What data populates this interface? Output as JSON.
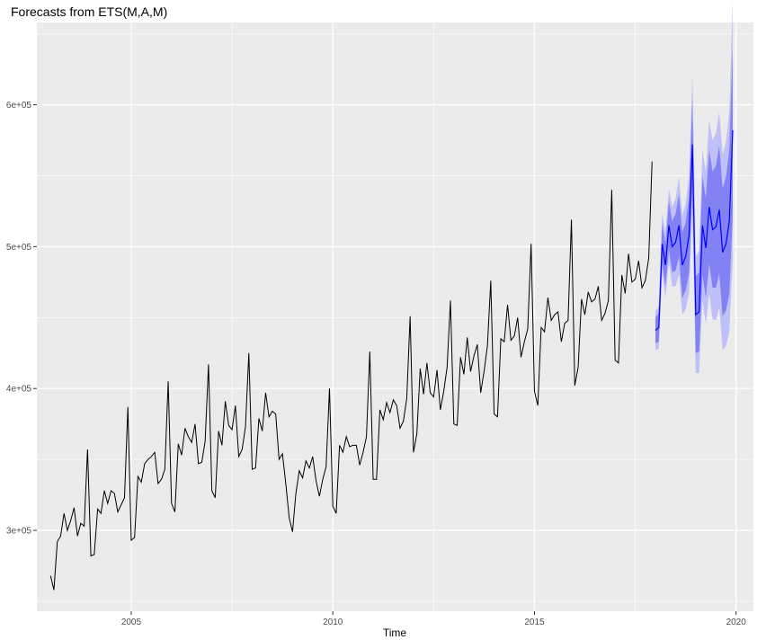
{
  "chart_data": {
    "type": "line",
    "title": "Forecasts from ETS(M,A,M)",
    "xlabel": "Time",
    "ylabel": "",
    "xlim": [
      2002.66,
      2020.43
    ],
    "ylim": [
      243000,
      658000
    ],
    "x_ticks": [
      2005,
      2010,
      2015,
      2020
    ],
    "x_tick_labels": [
      "2005",
      "2010",
      "2015",
      "2020"
    ],
    "y_ticks": [
      300000,
      400000,
      500000,
      600000
    ],
    "y_tick_labels": [
      "3e+05",
      "4e+05",
      "5e+05",
      "6e+05"
    ],
    "grid": true,
    "legend": "none",
    "colors": {
      "panel": "#ebebeb",
      "grid": "#ffffff",
      "series": "#000000",
      "forecast_line": "#0000ff",
      "band_95": "#bfc0f7",
      "band_80": "#8282f4"
    },
    "series": [
      {
        "start": 2003.0,
        "frequency": 12,
        "values": [
          268000,
          258000,
          292000,
          296000,
          312000,
          300000,
          307000,
          316000,
          296000,
          305000,
          303000,
          357000,
          282000,
          283000,
          315000,
          312000,
          328000,
          319000,
          328000,
          326000,
          313000,
          318000,
          323000,
          387000,
          293000,
          295000,
          338000,
          334000,
          347000,
          350000,
          352000,
          355000,
          333000,
          336000,
          343000,
          405000,
          319000,
          313000,
          361000,
          353000,
          372000,
          366000,
          362000,
          375000,
          347000,
          348000,
          363000,
          417000,
          328000,
          323000,
          370000,
          360000,
          391000,
          374000,
          371000,
          388000,
          352000,
          357000,
          373000,
          425000,
          343000,
          344000,
          379000,
          370000,
          397000,
          380000,
          384000,
          382000,
          350000,
          354000,
          333000,
          309000,
          299000,
          326000,
          342000,
          337000,
          349000,
          344000,
          352000,
          335000,
          324000,
          336000,
          345000,
          400000,
          317000,
          312000,
          360000,
          355000,
          366000,
          359000,
          360000,
          360000,
          346000,
          355000,
          366000,
          426000,
          336000,
          336000,
          385000,
          378000,
          390000,
          383000,
          392000,
          388000,
          372000,
          377000,
          393000,
          451000,
          355000,
          368000,
          414000,
          396000,
          418000,
          397000,
          394000,
          413000,
          385000,
          398000,
          415000,
          462000,
          375000,
          374000,
          422000,
          410000,
          436000,
          412000,
          423000,
          431000,
          397000,
          412000,
          430000,
          476000,
          382000,
          380000,
          435000,
          433000,
          459000,
          434000,
          437000,
          450000,
          422000,
          433000,
          442000,
          502000,
          398000,
          388000,
          443000,
          440000,
          464000,
          448000,
          452000,
          454000,
          433000,
          446000,
          448000,
          519000,
          402000,
          415000,
          463000,
          452000,
          468000,
          461000,
          463000,
          472000,
          448000,
          453000,
          462000,
          540000,
          420000,
          418000,
          480000,
          467000,
          495000,
          475000,
          477000,
          490000,
          471000,
          476000,
          492000,
          560000
        ]
      }
    ],
    "forecast": {
      "start": 2018.0,
      "frequency": 12,
      "mean": [
        441000,
        443000,
        502000,
        487000,
        515000,
        500000,
        503000,
        515000,
        487000,
        493000,
        508000,
        572000,
        452000,
        454000,
        515000,
        499000,
        528000,
        512000,
        514000,
        526000,
        496000,
        502000,
        518000,
        582000
      ],
      "lo80": [
        432000,
        433000,
        488000,
        472000,
        498000,
        482000,
        483000,
        493000,
        464000,
        469000,
        481000,
        540000,
        425000,
        426000,
        480000,
        464000,
        488000,
        471000,
        471000,
        481000,
        451000,
        455000,
        467000,
        523000
      ],
      "hi80": [
        450000,
        453000,
        516000,
        502000,
        532000,
        518000,
        523000,
        537000,
        510000,
        517000,
        535000,
        604000,
        479000,
        482000,
        550000,
        534000,
        568000,
        553000,
        557000,
        571000,
        541000,
        549000,
        569000,
        641000
      ],
      "lo95": [
        427000,
        428000,
        481000,
        464000,
        489000,
        472000,
        472000,
        481000,
        452000,
        456000,
        467000,
        523000,
        411000,
        411000,
        462000,
        445000,
        467000,
        449000,
        448000,
        457000,
        427000,
        430000,
        440000,
        491000
      ],
      "hi95": [
        455000,
        458000,
        523000,
        510000,
        541000,
        528000,
        534000,
        549000,
        522000,
        530000,
        549000,
        621000,
        493000,
        497000,
        568000,
        553000,
        589000,
        575000,
        580000,
        595000,
        565000,
        574000,
        596000,
        673000
      ]
    }
  }
}
